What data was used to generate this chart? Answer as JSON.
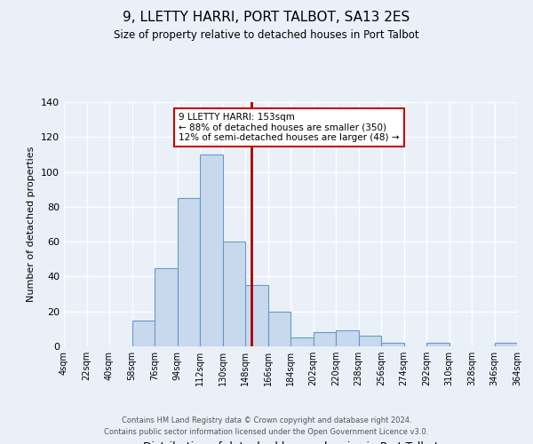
{
  "title": "9, LLETTY HARRI, PORT TALBOT, SA13 2ES",
  "subtitle": "Size of property relative to detached houses in Port Talbot",
  "xlabel": "Distribution of detached houses by size in Port Talbot",
  "ylabel": "Number of detached properties",
  "bin_edges": [
    4,
    22,
    40,
    58,
    76,
    94,
    112,
    130,
    148,
    166,
    184,
    202,
    220,
    238,
    256,
    274,
    292,
    310,
    328,
    346,
    364
  ],
  "bin_labels": [
    "4sqm",
    "22sqm",
    "40sqm",
    "58sqm",
    "76sqm",
    "94sqm",
    "112sqm",
    "130sqm",
    "148sqm",
    "166sqm",
    "184sqm",
    "202sqm",
    "220sqm",
    "238sqm",
    "256sqm",
    "274sqm",
    "292sqm",
    "310sqm",
    "328sqm",
    "346sqm",
    "364sqm"
  ],
  "counts": [
    0,
    0,
    0,
    15,
    45,
    85,
    110,
    60,
    35,
    20,
    5,
    8,
    9,
    6,
    2,
    0,
    2,
    0,
    0,
    2
  ],
  "bar_color": "#c9d9ed",
  "bar_edge_color": "#6699cc",
  "property_value": 153,
  "vline_color": "#aa0000",
  "annotation_title": "9 LLETTY HARRI: 153sqm",
  "annotation_line1": "← 88% of detached houses are smaller (350)",
  "annotation_line2": "12% of semi-detached houses are larger (48) →",
  "annotation_box_color": "#ffffff",
  "annotation_box_edge": "#cc0000",
  "ylim": [
    0,
    140
  ],
  "yticks": [
    0,
    20,
    40,
    60,
    80,
    100,
    120,
    140
  ],
  "background_color": "#eaf0f8",
  "grid_color": "#ffffff",
  "footer1": "Contains HM Land Registry data © Crown copyright and database right 2024.",
  "footer2": "Contains public sector information licensed under the Open Government Licence v3.0."
}
